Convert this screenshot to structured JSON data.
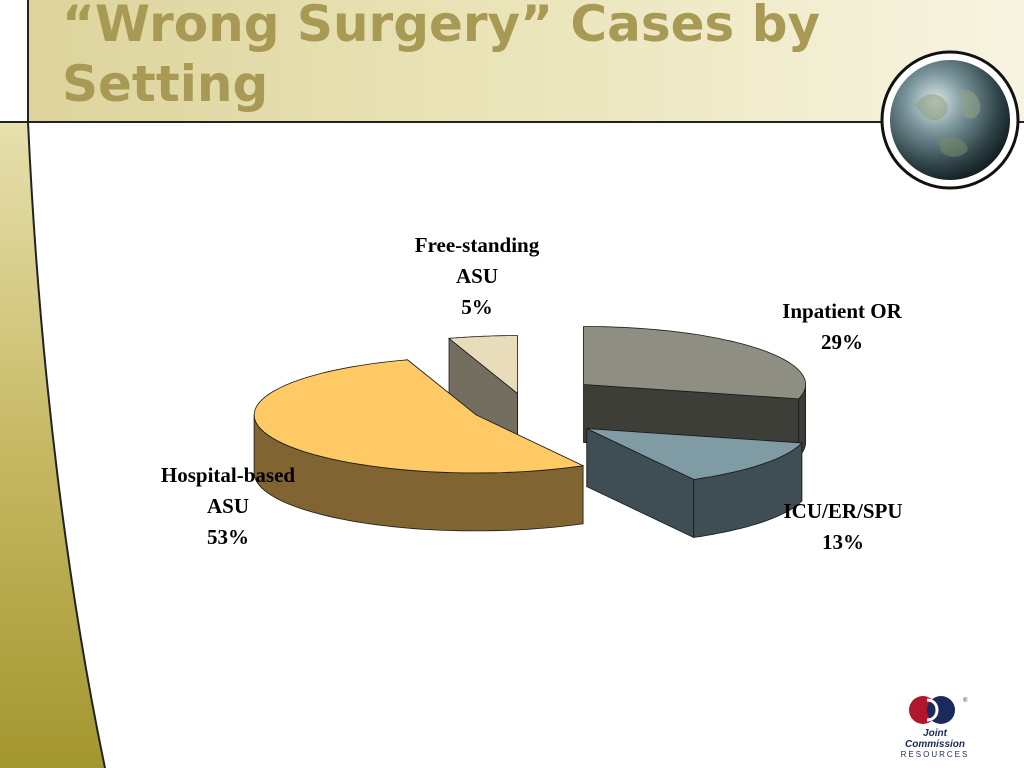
{
  "slide": {
    "title_line1": "“Wrong Surgery” Cases by",
    "title_line2": "Setting",
    "logo_line1": "Joint Commission",
    "logo_line2": "RESOURCES"
  },
  "colors": {
    "title": "#a89a55",
    "band": "#e9e3b5",
    "olive": "#a89b3c"
  },
  "chart_data": {
    "type": "pie",
    "title": "",
    "slices": [
      {
        "label_lines": [
          "Inpatient OR",
          "29%"
        ],
        "value": 29,
        "color": "#8e8e82",
        "side": "#3e3e38"
      },
      {
        "label_lines": [
          "ICU/ER/SPU",
          "13%"
        ],
        "value": 13,
        "color": "#7f9ba4",
        "side": "#3f4d54"
      },
      {
        "label_lines": [
          "Hospital-based",
          "ASU",
          "53%"
        ],
        "value": 53,
        "color": "#ffc966",
        "side": "#806432"
      },
      {
        "label_lines": [
          "Free-standing",
          "ASU",
          "5%"
        ],
        "value": 5,
        "color": "#e8dcba",
        "side": "#746e61"
      }
    ]
  }
}
